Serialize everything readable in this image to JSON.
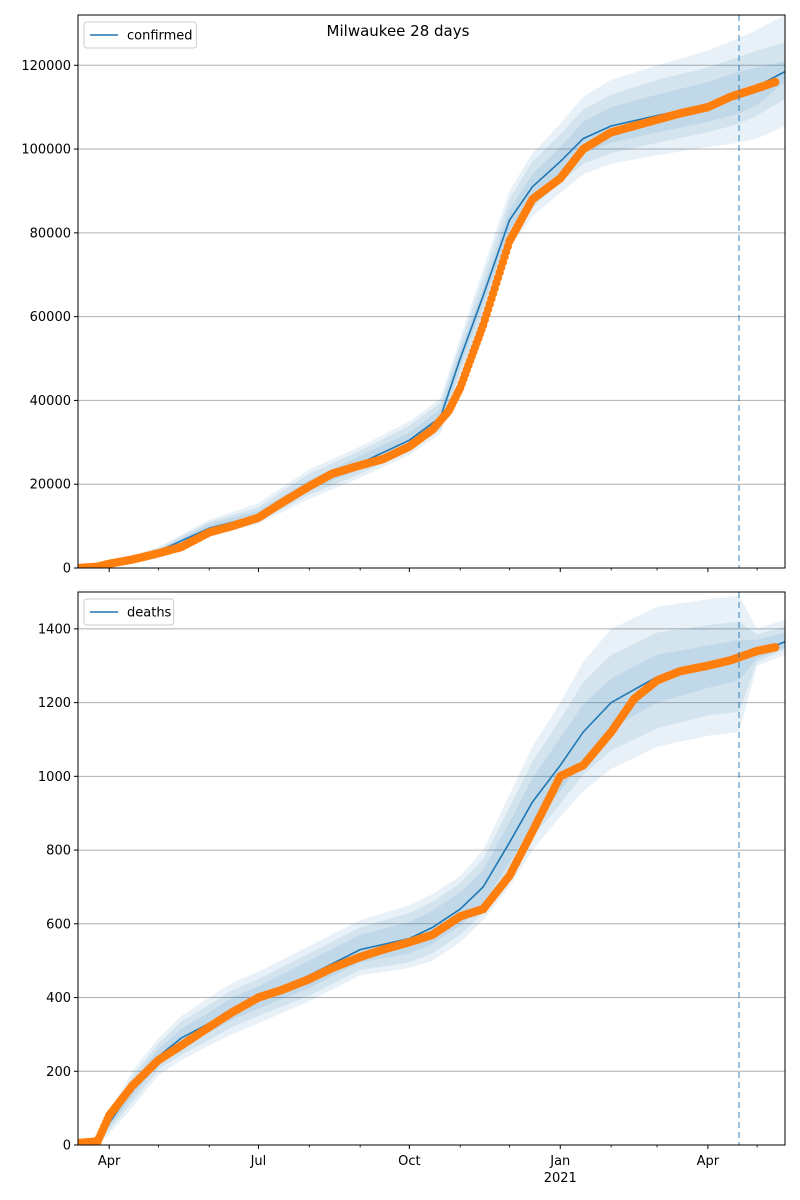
{
  "figure": {
    "title": "Milwaukee 28 days"
  },
  "colors": {
    "model": "#1f77b4",
    "band": "#1f77b4",
    "observed": "#ff7f0e",
    "grid": "#b0b0b0",
    "forecast_line": "#1f77b4"
  },
  "x_ticks": {
    "major": [
      {
        "date": "2020-04-01",
        "label": "Apr",
        "sublabel": ""
      },
      {
        "date": "2020-07-01",
        "label": "Jul",
        "sublabel": ""
      },
      {
        "date": "2020-10-01",
        "label": "Oct",
        "sublabel": ""
      },
      {
        "date": "2021-01-01",
        "label": "Jan",
        "sublabel": "2021"
      },
      {
        "date": "2021-04-01",
        "label": "Apr",
        "sublabel": ""
      }
    ],
    "minor": [
      "2020-05-01",
      "2020-06-01",
      "2020-08-01",
      "2020-09-01",
      "2020-11-01",
      "2020-12-01",
      "2021-02-01",
      "2021-03-01",
      "2021-05-01"
    ]
  },
  "chart_data": [
    {
      "type": "line",
      "title": "",
      "legend": {
        "label": "confirmed",
        "placement": "top-left"
      },
      "xlim": [
        "2020-03-13",
        "2021-05-18"
      ],
      "ylim": [
        0,
        132000
      ],
      "yticks": [
        0,
        20000,
        40000,
        60000,
        80000,
        100000,
        120000
      ],
      "grid": "y",
      "forecast_start": "2021-04-20",
      "model": {
        "x": [
          "2020-03-13",
          "2020-04-01",
          "2020-05-01",
          "2020-06-01",
          "2020-07-01",
          "2020-08-01",
          "2020-09-01",
          "2020-10-01",
          "2020-10-20",
          "2020-11-01",
          "2020-11-15",
          "2020-12-01",
          "2020-12-15",
          "2021-01-01",
          "2021-01-15",
          "2021-02-01",
          "2021-03-01",
          "2021-04-01",
          "2021-04-20",
          "2021-05-01",
          "2021-05-18"
        ],
        "y": [
          0,
          1000,
          4000,
          9500,
          12500,
          19500,
          25000,
          30500,
          36000,
          50000,
          65000,
          83000,
          91000,
          97000,
          102500,
          105500,
          108000,
          110500,
          113000,
          115000,
          118500
        ],
        "bands": [
          {
            "upper": [
              0,
              1300,
              5000,
              11500,
              15500,
              23500,
              29000,
              35000,
              40500,
              55000,
              71500,
              90000,
              99000,
              106000,
              112500,
              116500,
              120000,
              123500,
              126500,
              128500,
              132000
            ],
            "lower": [
              0,
              700,
              3000,
              8000,
              10500,
              16500,
              21500,
              27000,
              32000,
              45500,
              59000,
              76500,
              84000,
              89500,
              94000,
              96500,
              98500,
              100500,
              101500,
              102500,
              105500
            ]
          },
          {
            "upper": [
              0,
              1200,
              4700,
              11000,
              14500,
              22500,
              28000,
              34000,
              39500,
              53500,
              69500,
              88000,
              97000,
              103500,
              109500,
              113000,
              116500,
              119500,
              122000,
              123500,
              125500
            ],
            "lower": [
              0,
              800,
              3300,
              8500,
              11000,
              17500,
              22500,
              28000,
              33000,
              46500,
              60500,
              78500,
              86000,
              92000,
              96500,
              99000,
              101500,
              104000,
              106000,
              108000,
              112000
            ]
          },
          {
            "upper": [
              0,
              1100,
              4400,
              10500,
              13700,
              21000,
              26800,
              32300,
              38000,
              52000,
              67000,
              85500,
              94000,
              100500,
              106500,
              110000,
              113000,
              116000,
              118500,
              119500,
              121000
            ],
            "lower": [
              0,
              900,
              3600,
              8900,
              11600,
              18500,
              23600,
              29000,
              34500,
              48000,
              63000,
              80500,
              88500,
              94000,
              99000,
              101500,
              104000,
              106500,
              108500,
              110500,
              116000
            ]
          }
        ]
      },
      "observed": {
        "x": [
          "2020-03-13",
          "2020-03-25",
          "2020-04-01",
          "2020-04-15",
          "2020-05-01",
          "2020-05-15",
          "2020-06-01",
          "2020-06-15",
          "2020-07-01",
          "2020-07-15",
          "2020-08-01",
          "2020-08-15",
          "2020-09-01",
          "2020-09-15",
          "2020-10-01",
          "2020-10-15",
          "2020-10-25",
          "2020-11-01",
          "2020-11-15",
          "2020-12-01",
          "2020-12-15",
          "2021-01-01",
          "2021-01-15",
          "2021-02-01",
          "2021-02-15",
          "2021-03-01",
          "2021-03-15",
          "2021-04-01",
          "2021-04-15",
          "2021-05-01",
          "2021-05-12"
        ],
        "y": [
          0,
          300,
          1000,
          2000,
          3500,
          5000,
          8500,
          10000,
          12000,
          15500,
          19500,
          22500,
          24500,
          26000,
          29000,
          33000,
          37500,
          43000,
          58000,
          78000,
          88000,
          93000,
          100000,
          104000,
          105500,
          107000,
          108500,
          110000,
          112500,
          114500,
          116000
        ]
      }
    },
    {
      "type": "line",
      "title": "",
      "legend": {
        "label": "deaths",
        "placement": "top-left"
      },
      "xlim": [
        "2020-03-13",
        "2021-05-18"
      ],
      "ylim": [
        0,
        1500
      ],
      "yticks": [
        0,
        200,
        400,
        600,
        800,
        1000,
        1200,
        1400
      ],
      "grid": "y",
      "forecast_start": "2021-04-20",
      "model": {
        "x": [
          "2020-03-13",
          "2020-03-25",
          "2020-04-01",
          "2020-04-15",
          "2020-05-01",
          "2020-05-15",
          "2020-06-01",
          "2020-06-15",
          "2020-07-01",
          "2020-08-01",
          "2020-09-01",
          "2020-10-01",
          "2020-10-15",
          "2020-11-01",
          "2020-11-15",
          "2020-12-01",
          "2020-12-15",
          "2021-01-01",
          "2021-01-15",
          "2021-02-01",
          "2021-03-01",
          "2021-04-01",
          "2021-04-20",
          "2021-05-01",
          "2021-05-18"
        ],
        "y": [
          0,
          10,
          60,
          150,
          240,
          290,
          330,
          370,
          400,
          460,
          530,
          560,
          590,
          640,
          700,
          820,
          930,
          1030,
          1120,
          1200,
          1270,
          1300,
          1320,
          1335,
          1365
        ],
        "bands": [
          {
            "upper": [
              0,
              20,
              90,
              200,
              290,
              350,
              400,
              440,
              470,
              540,
              610,
              650,
              680,
              730,
              800,
              950,
              1080,
              1200,
              1310,
              1400,
              1460,
              1480,
              1490,
              1400,
              1425
            ],
            "lower": [
              0,
              0,
              30,
              100,
              190,
              230,
              270,
              300,
              330,
              390,
              460,
              480,
              500,
              550,
              610,
              700,
              800,
              890,
              960,
              1020,
              1080,
              1110,
              1120,
              1300,
              1330
            ]
          },
          {
            "upper": [
              0,
              17,
              80,
              185,
              275,
              335,
              380,
              420,
              450,
              520,
              590,
              630,
              660,
              710,
              775,
              915,
              1040,
              1155,
              1255,
              1330,
              1390,
              1410,
              1420,
              1385,
              1405
            ],
            "lower": [
              0,
              3,
              40,
              115,
              205,
              245,
              285,
              320,
              350,
              405,
              475,
              495,
              520,
              570,
              630,
              730,
              835,
              925,
              1005,
              1070,
              1130,
              1165,
              1175,
              1310,
              1345
            ]
          },
          {
            "upper": [
              0,
              14,
              70,
              170,
              260,
              315,
              360,
              400,
              430,
              500,
              570,
              605,
              635,
              685,
              745,
              875,
              995,
              1105,
              1195,
              1265,
              1330,
              1355,
              1370,
              1370,
              1390
            ],
            "lower": [
              0,
              6,
              50,
              130,
              220,
              265,
              305,
              340,
              370,
              425,
              495,
              520,
              545,
              595,
              655,
              765,
              870,
              960,
              1045,
              1130,
              1200,
              1240,
              1260,
              1320,
              1350
            ]
          }
        ]
      },
      "observed": {
        "x": [
          "2020-03-13",
          "2020-03-25",
          "2020-04-01",
          "2020-04-15",
          "2020-05-01",
          "2020-05-15",
          "2020-06-01",
          "2020-06-15",
          "2020-07-01",
          "2020-07-15",
          "2020-08-01",
          "2020-08-15",
          "2020-09-01",
          "2020-09-15",
          "2020-10-01",
          "2020-10-15",
          "2020-11-01",
          "2020-11-15",
          "2020-12-01",
          "2020-12-15",
          "2021-01-01",
          "2021-01-15",
          "2021-02-01",
          "2021-02-15",
          "2021-03-01",
          "2021-03-15",
          "2021-04-01",
          "2021-04-15",
          "2021-05-01",
          "2021-05-12"
        ],
        "y": [
          5,
          10,
          80,
          160,
          230,
          270,
          320,
          360,
          400,
          420,
          450,
          480,
          510,
          530,
          550,
          570,
          620,
          640,
          730,
          850,
          1000,
          1030,
          1120,
          1210,
          1260,
          1285,
          1300,
          1315,
          1340,
          1350
        ]
      }
    }
  ]
}
